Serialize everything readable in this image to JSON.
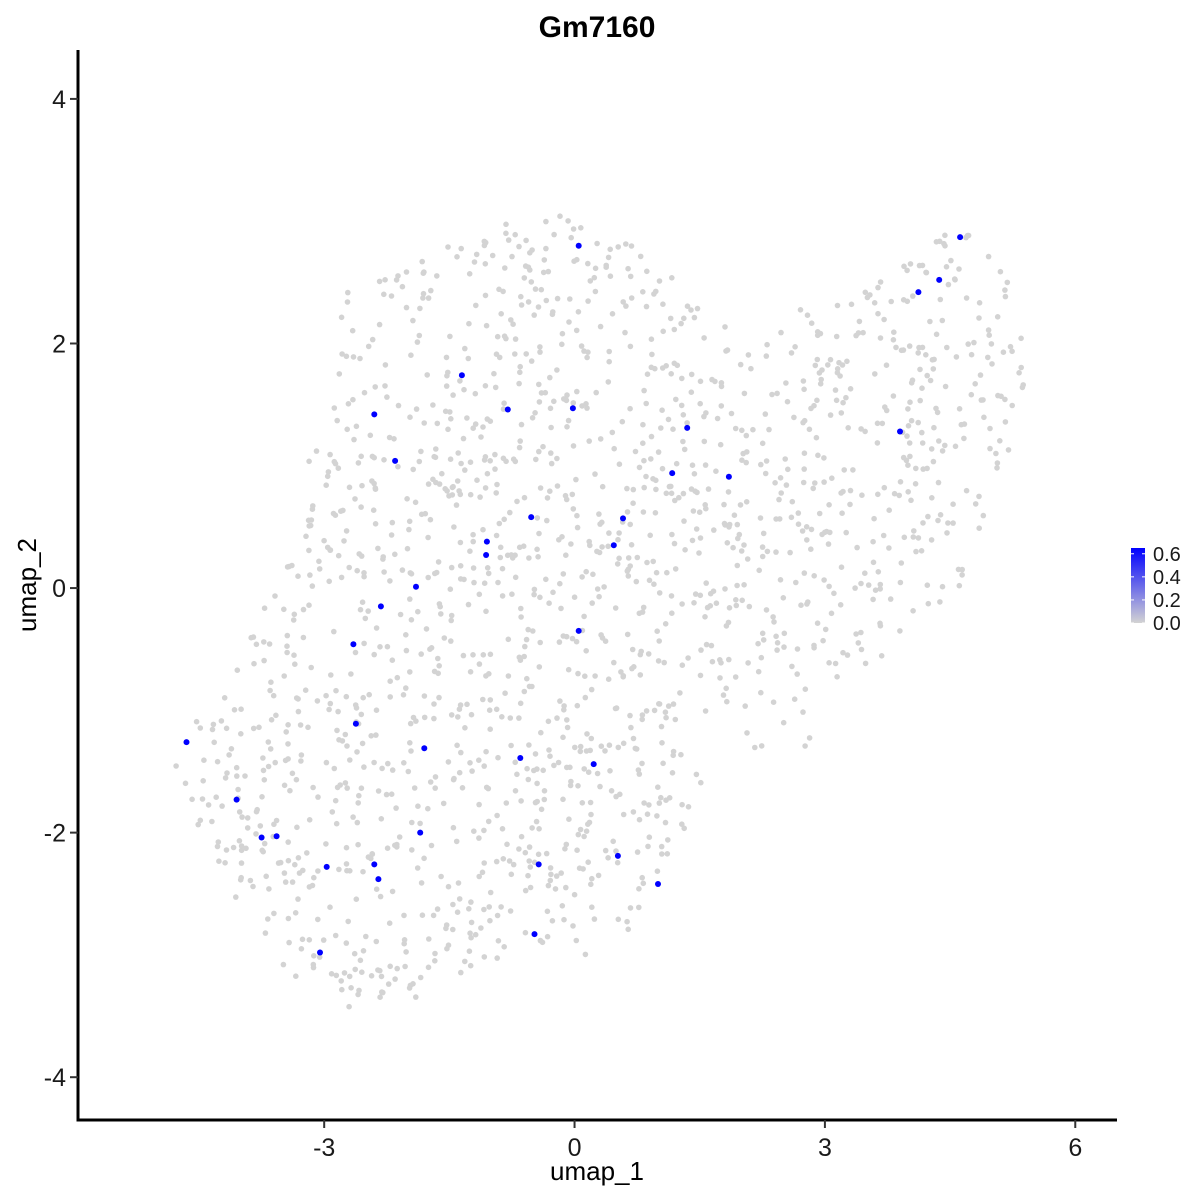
{
  "chart_data": {
    "type": "scatter",
    "title": "Gm7160",
    "xlabel": "umap_1",
    "ylabel": "umap_2",
    "xlim": [
      -5.95,
      6.5
    ],
    "ylim": [
      -4.35,
      4.4
    ],
    "x_ticks": [
      -3,
      0,
      3,
      6
    ],
    "x_tick_labels": [
      "-3",
      "0",
      "3",
      "6"
    ],
    "y_ticks": [
      -4,
      -2,
      0,
      2,
      4
    ],
    "y_tick_labels": [
      "-4",
      "-2",
      "0",
      "2",
      "4"
    ],
    "grid": false,
    "colors": {
      "low": "#d3d3d3",
      "high": "#0000ff",
      "axis": "#000000"
    },
    "legend": {
      "position": "right",
      "type": "colorbar",
      "labels": [
        "0.6",
        "0.4",
        "0.2",
        "0.0"
      ],
      "values": [
        0.6,
        0.4,
        0.2,
        0.0
      ],
      "range": [
        0,
        0.65
      ]
    },
    "series": [
      {
        "points": [
          [
            0.05,
            2.8,
            0.69
          ],
          [
            4.62,
            2.87,
            0.69
          ],
          [
            4.37,
            2.52,
            0.69
          ],
          [
            4.12,
            2.42,
            0.69
          ],
          [
            -1.35,
            1.74,
            0.69
          ],
          [
            -0.8,
            1.46,
            0.69
          ],
          [
            -0.02,
            1.47,
            0.69
          ],
          [
            -2.4,
            1.42,
            0.69
          ],
          [
            1.35,
            1.31,
            0.69
          ],
          [
            3.9,
            1.28,
            0.69
          ],
          [
            -2.15,
            1.04,
            0.69
          ],
          [
            1.17,
            0.94,
            0.69
          ],
          [
            1.85,
            0.91,
            0.69
          ],
          [
            -0.52,
            0.58,
            0.69
          ],
          [
            0.58,
            0.57,
            0.69
          ],
          [
            -1.05,
            0.38,
            0.69
          ],
          [
            0.47,
            0.35,
            0.69
          ],
          [
            -1.06,
            0.27,
            0.69
          ],
          [
            -1.9,
            0.01,
            0.69
          ],
          [
            -2.32,
            -0.15,
            0.69
          ],
          [
            0.05,
            -0.35,
            0.69
          ],
          [
            -2.65,
            -0.46,
            0.69
          ],
          [
            -2.62,
            -1.11,
            0.69
          ],
          [
            -1.8,
            -1.31,
            0.69
          ],
          [
            -0.65,
            -1.39,
            0.69
          ],
          [
            0.23,
            -1.44,
            0.69
          ],
          [
            -4.65,
            -1.26,
            0.69
          ],
          [
            -4.05,
            -1.73,
            0.69
          ],
          [
            -3.75,
            -2.04,
            0.69
          ],
          [
            -3.57,
            -2.03,
            0.69
          ],
          [
            -1.85,
            -2.0,
            0.69
          ],
          [
            0.52,
            -2.19,
            0.69
          ],
          [
            -2.4,
            -2.26,
            0.69
          ],
          [
            -2.97,
            -2.28,
            0.69
          ],
          [
            -0.43,
            -2.26,
            0.69
          ],
          [
            -2.35,
            -2.38,
            0.69
          ],
          [
            1.0,
            -2.42,
            0.69
          ],
          [
            -0.48,
            -2.83,
            0.69
          ],
          [
            -3.05,
            -2.98,
            0.69
          ]
        ]
      }
    ]
  }
}
